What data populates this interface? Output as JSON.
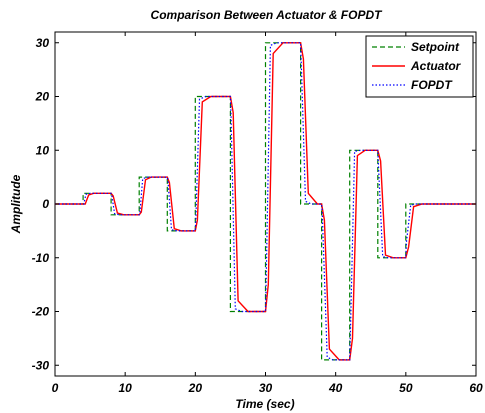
{
  "chart_data": {
    "type": "line",
    "title": "Comparison Between Actuator & FOPDT",
    "xlabel": "Time (sec)",
    "ylabel": "Amplitude",
    "xlim": [
      0,
      60
    ],
    "ylim": [
      -32,
      32
    ],
    "xticks": [
      0,
      10,
      20,
      30,
      40,
      50,
      60
    ],
    "yticks": [
      -30,
      -20,
      -10,
      0,
      10,
      20,
      30
    ],
    "grid": false,
    "legend_position": "top-right",
    "series": [
      {
        "name": "Setpoint",
        "color": "#008000",
        "style": "dashed",
        "x": [
          0,
          4,
          4,
          8,
          8,
          12,
          12,
          16,
          16,
          20,
          20,
          25,
          25,
          30,
          30,
          35,
          35,
          38,
          38,
          42,
          42,
          46,
          46,
          50,
          50,
          60
        ],
        "y": [
          0,
          0,
          2,
          2,
          -2,
          -2,
          5,
          5,
          -5,
          -5,
          20,
          20,
          -20,
          -20,
          30,
          30,
          0,
          0,
          -29,
          -29,
          10,
          10,
          -10,
          -10,
          0,
          0
        ]
      },
      {
        "name": "Actuator",
        "color": "#ff0000",
        "style": "solid",
        "x": [
          0,
          4.3,
          4.8,
          5.5,
          8,
          8.3,
          8.9,
          9.8,
          12,
          12.3,
          12.9,
          13.7,
          16,
          16.3,
          17,
          18,
          20,
          20.3,
          21,
          22.2,
          25,
          25.4,
          26.1,
          27.5,
          30,
          30.4,
          31.1,
          32.5,
          35,
          35.4,
          36.1,
          37.4,
          38,
          38.4,
          39.1,
          40.5,
          42,
          42.4,
          43.1,
          44.2,
          46,
          46.4,
          47.1,
          48.2,
          50,
          50.4,
          51.1,
          52.3,
          60
        ],
        "y": [
          0,
          0,
          1.7,
          2,
          2,
          1.5,
          -1.7,
          -2,
          -2,
          -1.5,
          4.5,
          5,
          5,
          4,
          -4.6,
          -5,
          -5,
          -3,
          19,
          20,
          20,
          17,
          -18,
          -20,
          -20,
          -15,
          28,
          30,
          30,
          27,
          2,
          0,
          0,
          -3,
          -27,
          -29,
          -29,
          -25,
          9,
          10,
          10,
          8,
          -9.5,
          -10,
          -10,
          -8,
          -0.5,
          0,
          0
        ]
      },
      {
        "name": "FOPDT",
        "color": "#0000ff",
        "style": "dotted",
        "x": [
          0,
          4.1,
          4.4,
          5,
          8,
          8.1,
          8.5,
          9.2,
          12,
          12.1,
          12.5,
          13.2,
          16,
          16.1,
          16.6,
          17.4,
          20,
          20.1,
          20.6,
          21.5,
          25,
          25.1,
          25.7,
          26.6,
          30,
          30.1,
          30.7,
          31.6,
          35,
          35.1,
          35.7,
          36.5,
          38,
          38.1,
          38.8,
          39.6,
          42,
          42.1,
          42.7,
          43.5,
          46,
          46.1,
          46.7,
          47.5,
          50,
          50.1,
          50.7,
          51.5,
          60
        ],
        "y": [
          0,
          0,
          1.8,
          2,
          2,
          1.6,
          -1.8,
          -2,
          -2,
          -1.6,
          4.7,
          5,
          5,
          4.3,
          -4.8,
          -5,
          -5,
          -2,
          19.5,
          20,
          20,
          16,
          -19.5,
          -20,
          -20,
          -14,
          29.5,
          30,
          30,
          26,
          0.5,
          0,
          0,
          -2,
          -28.5,
          -29,
          -29,
          -24,
          9.8,
          10,
          10,
          7,
          -9.8,
          -10,
          -10,
          -7,
          -0.2,
          0,
          0
        ]
      }
    ]
  }
}
